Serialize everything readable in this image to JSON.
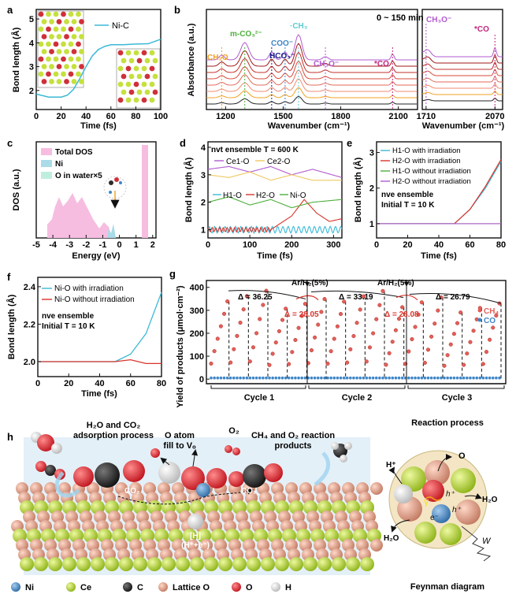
{
  "panel_labels": [
    "a",
    "b",
    "c",
    "d",
    "e",
    "f",
    "g",
    "h"
  ],
  "colors": {
    "cyan": "#3bb9d6",
    "red": "#d9342b",
    "purple": "#b15bd0",
    "green": "#4caf3a",
    "orange": "#f0a020",
    "navy": "#1d1f8c",
    "blue": "#3f86c8",
    "teal": "#5ecad0",
    "magenta": "#c2257e",
    "pink": "#f6bde0",
    "lightblue": "#a9dbe8",
    "mint": "#bfeee0",
    "ce": "#c6e03c",
    "ni": "#5b93c8",
    "c": "#2b2b2b",
    "lattice_o": "#e7a690",
    "o": "#d0303a",
    "h": "#f2f2f2"
  },
  "panel_a": {
    "ylabel": "Bond length (Å)",
    "xlabel": "Time (fs)",
    "legend": "Ni-C",
    "xticks": [
      "0",
      "20",
      "40",
      "60",
      "80",
      "100"
    ],
    "yticks": [
      "2",
      "3",
      "4",
      "5"
    ],
    "chart_data": {
      "type": "line",
      "xlabel": "Time (fs)",
      "ylabel": "Bond length (Å)",
      "xlim": [
        0,
        100
      ],
      "ylim": [
        1.2,
        5.4
      ],
      "series": [
        {
          "name": "Ni-C",
          "x": [
            0,
            10,
            20,
            25,
            30,
            35,
            40,
            45,
            50,
            55,
            60,
            70,
            80,
            90,
            100
          ],
          "y": [
            1.85,
            1.72,
            1.72,
            1.8,
            2.05,
            2.5,
            3.0,
            3.45,
            3.72,
            3.85,
            3.92,
            3.92,
            3.95,
            3.96,
            4.15
          ]
        }
      ]
    }
  },
  "panel_b": {
    "ylabel": "Absorbance (a.u.)",
    "xlabel": "Wavenumber (cm⁻¹)",
    "time_note": "0 ~ 150 min",
    "left_xticks": [
      "1200",
      "1500",
      "1800",
      "2100"
    ],
    "right_xticks": [
      "1710",
      "2070"
    ],
    "labels": {
      "h2o": "CH₂O",
      "mco3": "m-CO₃²⁻",
      "hco3": "HCO₃⁻",
      "coo": "COO⁻",
      "ch3": "·CH₃",
      "ch3o": "CH₃O⁻",
      "co": "*CO"
    },
    "chart_data": {
      "type": "line",
      "xlabel": "Wavenumber (cm⁻¹)",
      "ylabel": "Absorbance (a.u.)",
      "xlim": [
        1100,
        2200
      ],
      "note": "0 ~ 150 min, 8 stacked spectra",
      "peaks": [
        {
          "name": "CH₂O",
          "x": 1180
        },
        {
          "name": "m-CO₃²⁻",
          "x": 1300
        },
        {
          "name": "HCO₃⁻",
          "x": 1440
        },
        {
          "name": "COO⁻",
          "x": 1510
        },
        {
          "name": "·CH₃",
          "x": 1580
        },
        {
          "name": "CH₃O⁻",
          "x": 1720
        },
        {
          "name": "*CO",
          "x": 2070
        }
      ]
    }
  },
  "panel_c": {
    "ylabel": "DOS (a.u.)",
    "xlabel": "Energy (eV)",
    "legend": [
      "Total DOS",
      "Ni",
      "O in water×5"
    ],
    "xticks": [
      "-5",
      "-4",
      "-3",
      "-2",
      "-1",
      "0",
      "1",
      "2"
    ]
  },
  "panel_d": {
    "ylabel": "Bond length (Å)",
    "xlabel": "Time (fs)",
    "title": "nvt ensemble T = 600 K",
    "legend": [
      "Ce1-O",
      "Ce2-O",
      "H1-O",
      "H2-O",
      "Ni-O"
    ],
    "xticks": [
      "0",
      "100",
      "200",
      "300"
    ],
    "yticks": [
      "1",
      "2",
      "3",
      "4"
    ],
    "chart_data": {
      "type": "line",
      "xlabel": "Time (fs)",
      "ylabel": "Bond length (Å)",
      "xlim": [
        0,
        320
      ],
      "ylim": [
        0.7,
        4.2
      ],
      "series": [
        {
          "name": "Ce1-O",
          "x": [
            0,
            50,
            100,
            150,
            200,
            250,
            320
          ],
          "y": [
            3.2,
            3.3,
            3.1,
            3.3,
            3.0,
            3.2,
            2.9
          ]
        },
        {
          "name": "Ce2-O",
          "x": [
            0,
            50,
            100,
            150,
            200,
            250,
            320
          ],
          "y": [
            3.0,
            2.9,
            3.1,
            2.8,
            3.0,
            2.8,
            2.8
          ]
        },
        {
          "name": "H1-O",
          "x": [
            0,
            320
          ],
          "y": [
            1.0,
            1.0
          ]
        },
        {
          "name": "H2-O",
          "x": [
            0,
            150,
            200,
            230,
            260,
            290,
            320
          ],
          "y": [
            1.0,
            1.0,
            1.5,
            2.1,
            1.6,
            1.3,
            1.4
          ]
        },
        {
          "name": "Ni-O",
          "x": [
            0,
            50,
            100,
            150,
            200,
            250,
            320
          ],
          "y": [
            2.0,
            2.2,
            1.9,
            2.1,
            1.8,
            2.0,
            2.1
          ]
        }
      ]
    }
  },
  "panel_e": {
    "ylabel": "Bond length (Å)",
    "xlabel": "Time (fs)",
    "legend": [
      "H1-O with irradiation",
      "H2-O with irradiation",
      "H1-O without irradiation",
      "H2-O without irradiation"
    ],
    "note1": "nve ensemble",
    "note2": "Initial T = 10 K",
    "xticks": [
      "0",
      "20",
      "40",
      "60",
      "80"
    ],
    "yticks": [
      "1",
      "2",
      "3"
    ],
    "chart_data": {
      "type": "line",
      "xlabel": "Time (fs)",
      "ylabel": "Bond length (Å)",
      "xlim": [
        0,
        80
      ],
      "ylim": [
        0.6,
        3.3
      ],
      "series": [
        {
          "name": "H1-O with irradiation",
          "x": [
            0,
            50,
            60,
            70,
            80
          ],
          "y": [
            1.0,
            1.0,
            1.4,
            2.0,
            2.75
          ]
        },
        {
          "name": "H2-O with irradiation",
          "x": [
            0,
            50,
            60,
            70,
            80
          ],
          "y": [
            1.0,
            1.0,
            1.4,
            2.05,
            2.8
          ]
        },
        {
          "name": "H1-O without irradiation",
          "x": [
            0,
            80
          ],
          "y": [
            1.0,
            1.0
          ]
        },
        {
          "name": "H2-O without irradiation",
          "x": [
            0,
            80
          ],
          "y": [
            1.0,
            1.0
          ]
        }
      ]
    }
  },
  "panel_f": {
    "ylabel": "Bond length (Å)",
    "xlabel": "Time (fs)",
    "legend": [
      "Ni-O with irradiation",
      "Ni-O without irradiation"
    ],
    "note1": "nve ensemble",
    "note2": "Initial T = 10 K",
    "xticks": [
      "0",
      "20",
      "40",
      "60",
      "80"
    ],
    "yticks": [
      "2.0",
      "2.2",
      "2.4"
    ],
    "chart_data": {
      "type": "line",
      "xlabel": "Time (fs)",
      "ylabel": "Bond length (Å)",
      "xlim": [
        0,
        80
      ],
      "ylim": [
        1.92,
        2.45
      ],
      "series": [
        {
          "name": "Ni-O with irradiation",
          "x": [
            0,
            50,
            60,
            70,
            80
          ],
          "y": [
            2.0,
            2.0,
            2.04,
            2.15,
            2.37
          ]
        },
        {
          "name": "Ni-O without irradiation",
          "x": [
            0,
            50,
            60,
            70,
            80
          ],
          "y": [
            2.0,
            2.0,
            2.01,
            1.99,
            1.99
          ]
        }
      ]
    }
  },
  "panel_g": {
    "ylabel": "Yield of products (μmol·cm⁻²)",
    "yticks": [
      "0",
      "100",
      "200",
      "300",
      "400"
    ],
    "cycles": [
      "Cycle 1",
      "Cycle 2",
      "Cycle 3"
    ],
    "purge_label": "Ar/H₂(5%)",
    "deltas": {
      "d1": "Δ = 36.25",
      "d2": "Δ = 28.05",
      "d3": "Δ = 33.19",
      "d4": "Δ = 28.08",
      "d5": "Δ = 26.79"
    },
    "legend": [
      "CH₄",
      "CO"
    ],
    "chart_data": {
      "type": "scatter",
      "ylabel": "Yield of products (μmol·cm⁻²)",
      "ylim": [
        -20,
        430
      ],
      "series": [
        {
          "name": "CH₄",
          "cycle_maxima": [
            385,
            349,
            384,
            356,
            330
          ]
        },
        {
          "name": "CO",
          "values_approx": [
            5
          ]
        }
      ],
      "deltas": [
        36.25,
        28.05,
        33.19,
        28.08,
        26.79
      ]
    }
  },
  "panel_h": {
    "labels": {
      "adsorption": "H₂O and CO₂",
      "adsorption2": "adsorption process",
      "fill": "O atom",
      "fill2": "fill to Vₒ",
      "o2": "O₂",
      "products": "CH₄ and O₂ reaction",
      "products2": "products",
      "co2a": "CO₂",
      "co2b": "CO₂",
      "hbox": "[H]",
      "hbox2": "(H⁺+e⁻)",
      "reaction": "Reaction process",
      "feynman": "Feynman diagram",
      "hplus": "H⁺",
      "o": "O",
      "h2o_right": "H₂O",
      "h2o_left": "H₂O",
      "gamma": "γ",
      "eminus": "e⁻",
      "hplus_a": "h⁺",
      "hplus_b": "h⁺",
      "w": "W"
    },
    "legend": [
      "Ni",
      "Ce",
      "C",
      "Lattice O",
      "O",
      "H"
    ]
  }
}
